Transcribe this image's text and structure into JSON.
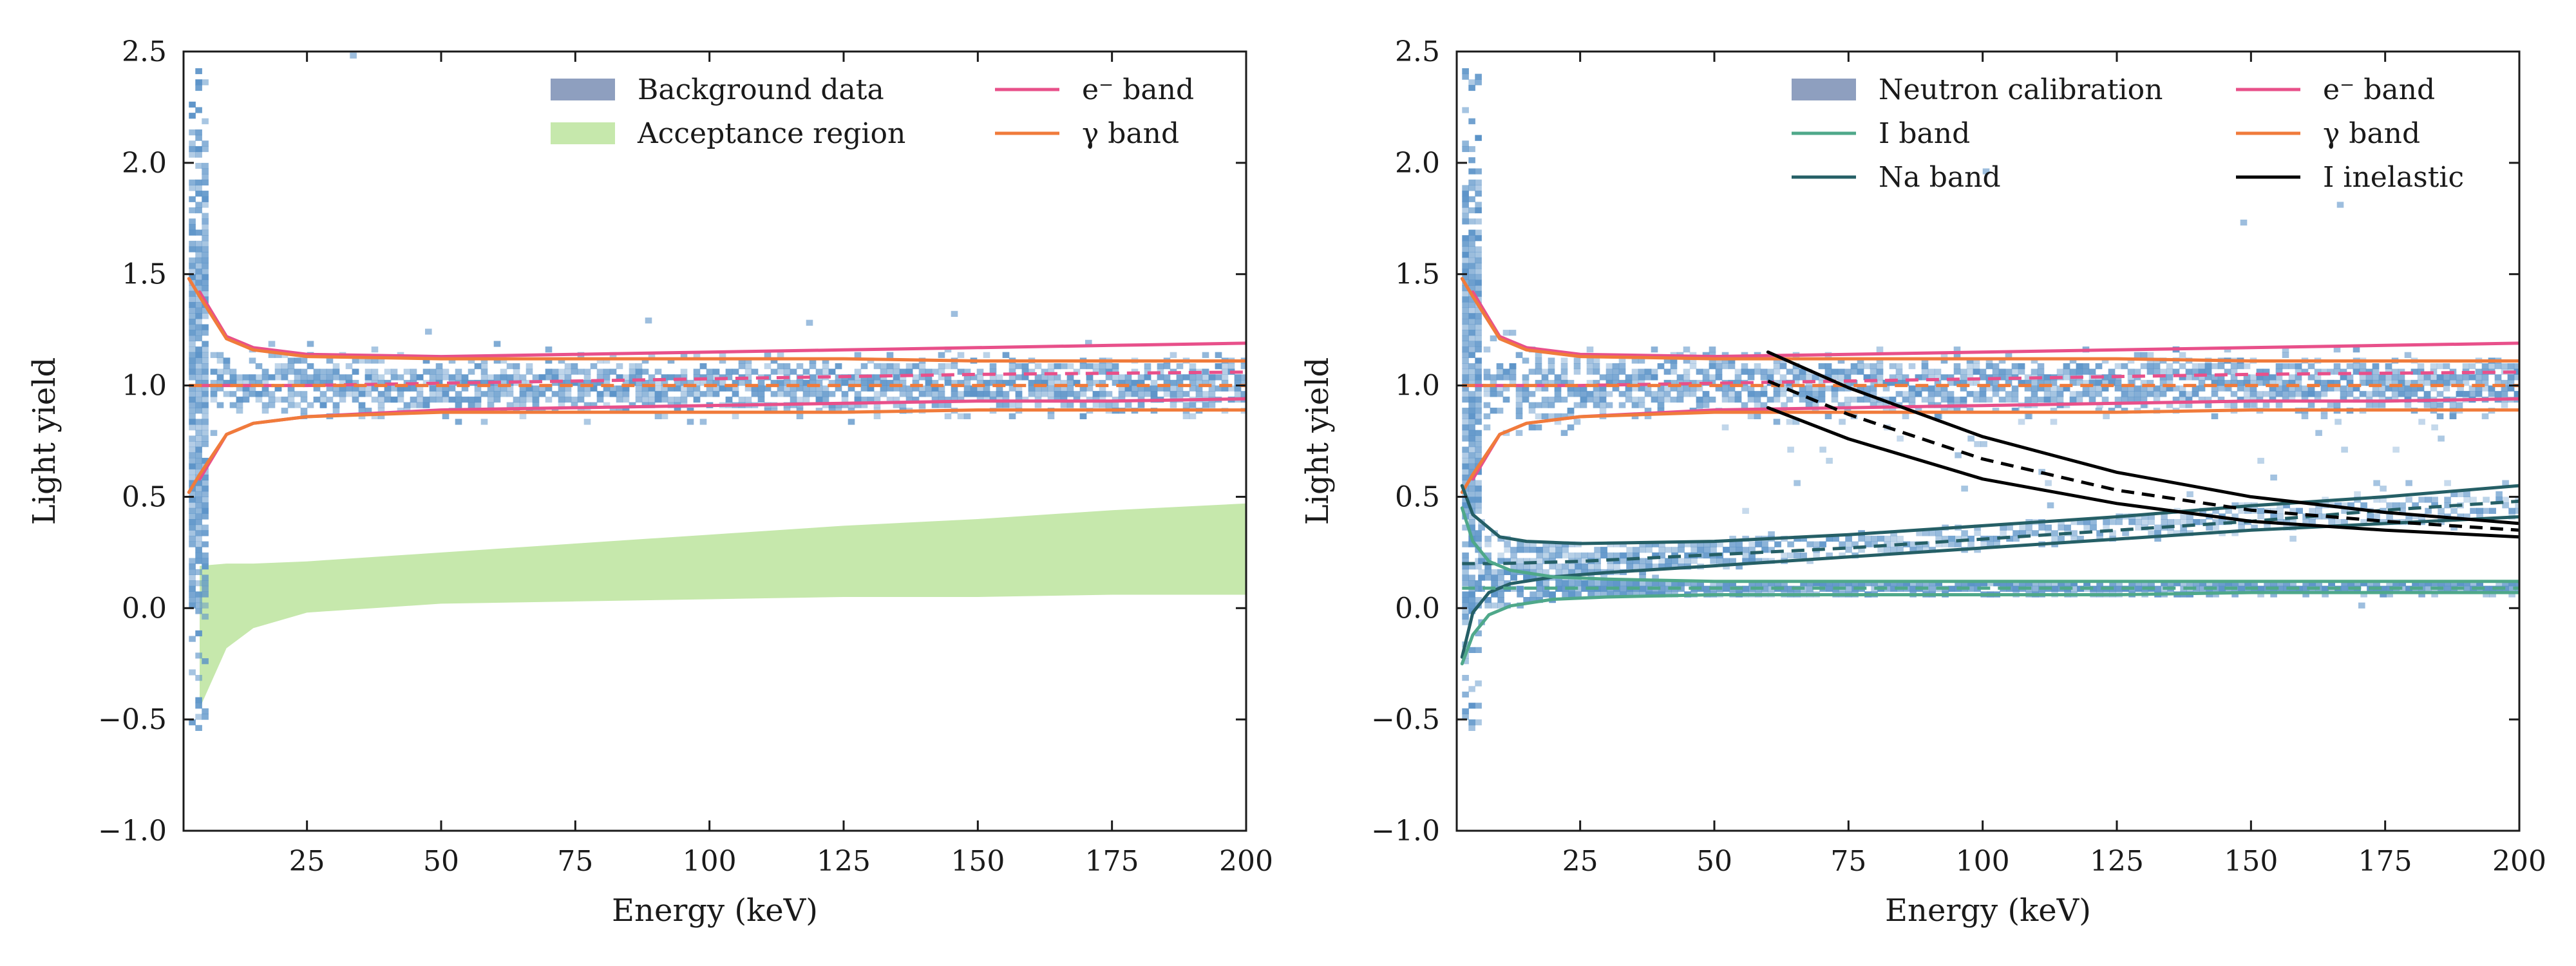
{
  "chart_data": [
    {
      "type": "scatter",
      "panel": "left",
      "title": "",
      "xlabel": "Energy (keV)",
      "ylabel": "Light yield",
      "xlim": [
        2,
        200
      ],
      "ylim": [
        -1.0,
        2.5
      ],
      "x_ticks": [
        25,
        50,
        75,
        100,
        125,
        150,
        175,
        200
      ],
      "x_tick_labels": [
        "25",
        "50",
        "75",
        "100",
        "125",
        "150",
        "175",
        "200"
      ],
      "y_ticks": [
        -1.0,
        -0.5,
        0.0,
        0.5,
        1.0,
        1.5,
        2.0,
        2.5
      ],
      "y_tick_labels": [
        "−1.0",
        "−0.5",
        "0.0",
        "0.5",
        "1.0",
        "1.5",
        "2.0",
        "2.5"
      ],
      "grid": false,
      "legend_position": "top-right",
      "legend": [
        {
          "label": "Background data",
          "kind": "patch",
          "color": "#8e9fbf",
          "col": 0
        },
        {
          "label": "Acceptance region",
          "kind": "patch",
          "color": "#c6e8ac",
          "col": 0
        },
        {
          "label": "e⁻ band",
          "kind": "line",
          "color": "#e8508a",
          "col": 1
        },
        {
          "label": "γ band",
          "kind": "line",
          "color": "#f07b3b",
          "col": 1
        }
      ],
      "histogram": {
        "name": "Background data",
        "color": "#5b93c8",
        "y_center": 1.0,
        "band_half_width_high_energy": 0.12,
        "low_energy_column_keV": [
          3,
          6
        ],
        "outlier_points": [
          [
            33,
            2.47
          ],
          [
            88,
            1.28
          ],
          [
            145,
            1.31
          ],
          [
            47,
            1.23
          ],
          [
            118,
            1.27
          ],
          [
            170,
            1.18
          ]
        ]
      },
      "acceptance_region": {
        "name": "Acceptance region",
        "color": "#c6e8ac",
        "x": [
          5,
          10,
          15,
          25,
          50,
          75,
          100,
          125,
          150,
          175,
          200
        ],
        "lower": [
          -0.45,
          -0.18,
          -0.09,
          -0.02,
          0.02,
          0.03,
          0.04,
          0.05,
          0.05,
          0.06,
          0.06
        ],
        "upper": [
          0.19,
          0.2,
          0.2,
          0.21,
          0.25,
          0.29,
          0.33,
          0.37,
          0.4,
          0.44,
          0.47
        ]
      },
      "series": [
        {
          "name": "e⁻ band upper",
          "color": "#e8508a",
          "style": "solid",
          "x": [
            5,
            10,
            15,
            25,
            50,
            75,
            100,
            125,
            150,
            175,
            200
          ],
          "y": [
            1.42,
            1.22,
            1.17,
            1.14,
            1.13,
            1.14,
            1.15,
            1.16,
            1.17,
            1.18,
            1.19
          ]
        },
        {
          "name": "e⁻ band mean",
          "color": "#e8508a",
          "style": "dashed",
          "x": [
            5,
            10,
            25,
            50,
            100,
            150,
            200
          ],
          "y": [
            1.0,
            1.0,
            1.0,
            1.01,
            1.03,
            1.05,
            1.06
          ]
        },
        {
          "name": "e⁻ band lower",
          "color": "#e8508a",
          "style": "solid",
          "x": [
            5,
            10,
            15,
            25,
            50,
            75,
            100,
            125,
            150,
            175,
            200
          ],
          "y": [
            0.58,
            0.78,
            0.83,
            0.86,
            0.89,
            0.9,
            0.91,
            0.92,
            0.93,
            0.93,
            0.94
          ]
        },
        {
          "name": "γ band upper",
          "color": "#f07b3b",
          "style": "solid",
          "x": [
            3,
            5,
            10,
            15,
            25,
            50,
            75,
            100,
            125,
            150,
            175,
            200
          ],
          "y": [
            1.48,
            1.4,
            1.21,
            1.16,
            1.13,
            1.12,
            1.12,
            1.12,
            1.12,
            1.11,
            1.11,
            1.11
          ]
        },
        {
          "name": "γ band mean",
          "color": "#f07b3b",
          "style": "dashed",
          "x": [
            3,
            10,
            50,
            100,
            150,
            200
          ],
          "y": [
            1.0,
            1.0,
            1.0,
            1.0,
            1.0,
            1.0
          ]
        },
        {
          "name": "γ band lower",
          "color": "#f07b3b",
          "style": "solid",
          "x": [
            3,
            5,
            10,
            15,
            25,
            50,
            75,
            100,
            125,
            150,
            175,
            200
          ],
          "y": [
            0.52,
            0.6,
            0.78,
            0.83,
            0.86,
            0.88,
            0.88,
            0.88,
            0.88,
            0.89,
            0.89,
            0.89
          ]
        }
      ]
    },
    {
      "type": "scatter",
      "panel": "right",
      "title": "",
      "xlabel": "Energy (keV)",
      "ylabel": "Light yield",
      "xlim": [
        2,
        200
      ],
      "ylim": [
        -1.0,
        2.5
      ],
      "x_ticks": [
        25,
        50,
        75,
        100,
        125,
        150,
        175,
        200
      ],
      "x_tick_labels": [
        "25",
        "50",
        "75",
        "100",
        "125",
        "150",
        "175",
        "200"
      ],
      "y_ticks": [
        -1.0,
        -0.5,
        0.0,
        0.5,
        1.0,
        1.5,
        2.0,
        2.5
      ],
      "y_tick_labels": [
        "−1.0",
        "−0.5",
        "0.0",
        "0.5",
        "1.0",
        "1.5",
        "2.0",
        "2.5"
      ],
      "grid": false,
      "legend_position": "top-right",
      "legend": [
        {
          "label": "Neutron calibration",
          "kind": "patch",
          "color": "#8e9fbf",
          "col": 0
        },
        {
          "label": "I band",
          "kind": "line",
          "color": "#4fa88a",
          "col": 0
        },
        {
          "label": "Na band",
          "kind": "line",
          "color": "#255f66",
          "col": 0
        },
        {
          "label": "e⁻ band",
          "kind": "line",
          "color": "#e8508a",
          "col": 1
        },
        {
          "label": "γ band",
          "kind": "line",
          "color": "#f07b3b",
          "col": 1
        },
        {
          "label": "I inelastic",
          "kind": "line",
          "color": "#000000",
          "col": 1
        }
      ],
      "histogram": {
        "name": "Neutron calibration",
        "color": "#5b93c8",
        "y_center": 1.0,
        "band_half_width_high_energy": 0.12,
        "low_energy_column_keV": [
          3,
          6
        ],
        "outlier_points": [
          [
            100,
            1.95
          ],
          [
            166,
            1.8
          ],
          [
            148,
            1.72
          ],
          [
            60,
            0.32
          ],
          [
            112,
            0.45
          ],
          [
            170,
            0.0
          ]
        ]
      },
      "series": [
        {
          "name": "e⁻ band upper",
          "color": "#e8508a",
          "style": "solid",
          "x": [
            5,
            10,
            15,
            25,
            50,
            75,
            100,
            125,
            150,
            175,
            200
          ],
          "y": [
            1.42,
            1.22,
            1.17,
            1.14,
            1.13,
            1.14,
            1.15,
            1.16,
            1.17,
            1.18,
            1.19
          ]
        },
        {
          "name": "e⁻ band mean",
          "color": "#e8508a",
          "style": "dashed",
          "x": [
            5,
            10,
            25,
            50,
            100,
            150,
            200
          ],
          "y": [
            1.0,
            1.0,
            1.0,
            1.01,
            1.03,
            1.05,
            1.06
          ]
        },
        {
          "name": "e⁻ band lower",
          "color": "#e8508a",
          "style": "solid",
          "x": [
            5,
            10,
            15,
            25,
            50,
            75,
            100,
            125,
            150,
            175,
            200
          ],
          "y": [
            0.58,
            0.78,
            0.83,
            0.86,
            0.89,
            0.9,
            0.91,
            0.92,
            0.93,
            0.93,
            0.94
          ]
        },
        {
          "name": "γ band upper",
          "color": "#f07b3b",
          "style": "solid",
          "x": [
            3,
            5,
            10,
            15,
            25,
            50,
            75,
            100,
            125,
            150,
            175,
            200
          ],
          "y": [
            1.48,
            1.4,
            1.21,
            1.16,
            1.13,
            1.12,
            1.12,
            1.12,
            1.12,
            1.11,
            1.11,
            1.11
          ]
        },
        {
          "name": "γ band mean",
          "color": "#f07b3b",
          "style": "dashed",
          "x": [
            3,
            10,
            50,
            100,
            150,
            200
          ],
          "y": [
            1.0,
            1.0,
            1.0,
            1.0,
            1.0,
            1.0
          ]
        },
        {
          "name": "γ band lower",
          "color": "#f07b3b",
          "style": "solid",
          "x": [
            3,
            5,
            10,
            15,
            25,
            50,
            75,
            100,
            125,
            150,
            175,
            200
          ],
          "y": [
            0.52,
            0.6,
            0.78,
            0.83,
            0.86,
            0.88,
            0.88,
            0.88,
            0.88,
            0.89,
            0.89,
            0.89
          ]
        },
        {
          "name": "Na band upper",
          "color": "#255f66",
          "style": "solid",
          "x": [
            3,
            5,
            10,
            15,
            25,
            50,
            75,
            100,
            125,
            150,
            175,
            200
          ],
          "y": [
            0.55,
            0.42,
            0.32,
            0.3,
            0.29,
            0.3,
            0.33,
            0.37,
            0.41,
            0.46,
            0.5,
            0.55
          ]
        },
        {
          "name": "Na band mean",
          "color": "#255f66",
          "style": "dashed",
          "x": [
            3,
            10,
            25,
            50,
            75,
            100,
            125,
            150,
            175,
            200
          ],
          "y": [
            0.2,
            0.2,
            0.21,
            0.24,
            0.27,
            0.31,
            0.35,
            0.39,
            0.44,
            0.48
          ]
        },
        {
          "name": "Na band lower",
          "color": "#255f66",
          "style": "solid",
          "x": [
            3,
            5,
            8,
            12,
            20,
            30,
            50,
            75,
            100,
            125,
            150,
            175,
            200
          ],
          "y": [
            -0.22,
            -0.02,
            0.07,
            0.11,
            0.14,
            0.16,
            0.19,
            0.23,
            0.27,
            0.31,
            0.35,
            0.38,
            0.41
          ]
        },
        {
          "name": "I band upper",
          "color": "#4fa88a",
          "style": "solid",
          "x": [
            3,
            5,
            8,
            12,
            20,
            30,
            50,
            75,
            100,
            125,
            150,
            175,
            200
          ],
          "y": [
            0.45,
            0.3,
            0.21,
            0.17,
            0.14,
            0.13,
            0.12,
            0.12,
            0.12,
            0.12,
            0.12,
            0.12,
            0.12
          ]
        },
        {
          "name": "I band mean",
          "color": "#4fa88a",
          "style": "dashed",
          "x": [
            3,
            10,
            50,
            100,
            150,
            200
          ],
          "y": [
            0.09,
            0.09,
            0.09,
            0.09,
            0.09,
            0.09
          ]
        },
        {
          "name": "I band lower",
          "color": "#4fa88a",
          "style": "solid",
          "x": [
            3,
            5,
            8,
            12,
            20,
            30,
            50,
            75,
            100,
            125,
            150,
            175,
            200
          ],
          "y": [
            -0.25,
            -0.12,
            -0.03,
            0.01,
            0.04,
            0.05,
            0.06,
            0.06,
            0.06,
            0.06,
            0.07,
            0.07,
            0.07
          ]
        },
        {
          "name": "I inelastic upper",
          "color": "#000000",
          "style": "solid",
          "x": [
            60,
            75,
            100,
            125,
            150,
            175,
            200
          ],
          "y": [
            1.15,
            0.99,
            0.77,
            0.61,
            0.5,
            0.43,
            0.38
          ]
        },
        {
          "name": "I inelastic mean",
          "color": "#000000",
          "style": "dashed",
          "x": [
            60,
            75,
            100,
            125,
            150,
            175,
            200
          ],
          "y": [
            1.02,
            0.87,
            0.67,
            0.53,
            0.44,
            0.39,
            0.35
          ]
        },
        {
          "name": "I inelastic lower",
          "color": "#000000",
          "style": "solid",
          "x": [
            60,
            75,
            100,
            125,
            150,
            175,
            200
          ],
          "y": [
            0.9,
            0.76,
            0.58,
            0.47,
            0.39,
            0.35,
            0.32
          ]
        }
      ]
    }
  ]
}
